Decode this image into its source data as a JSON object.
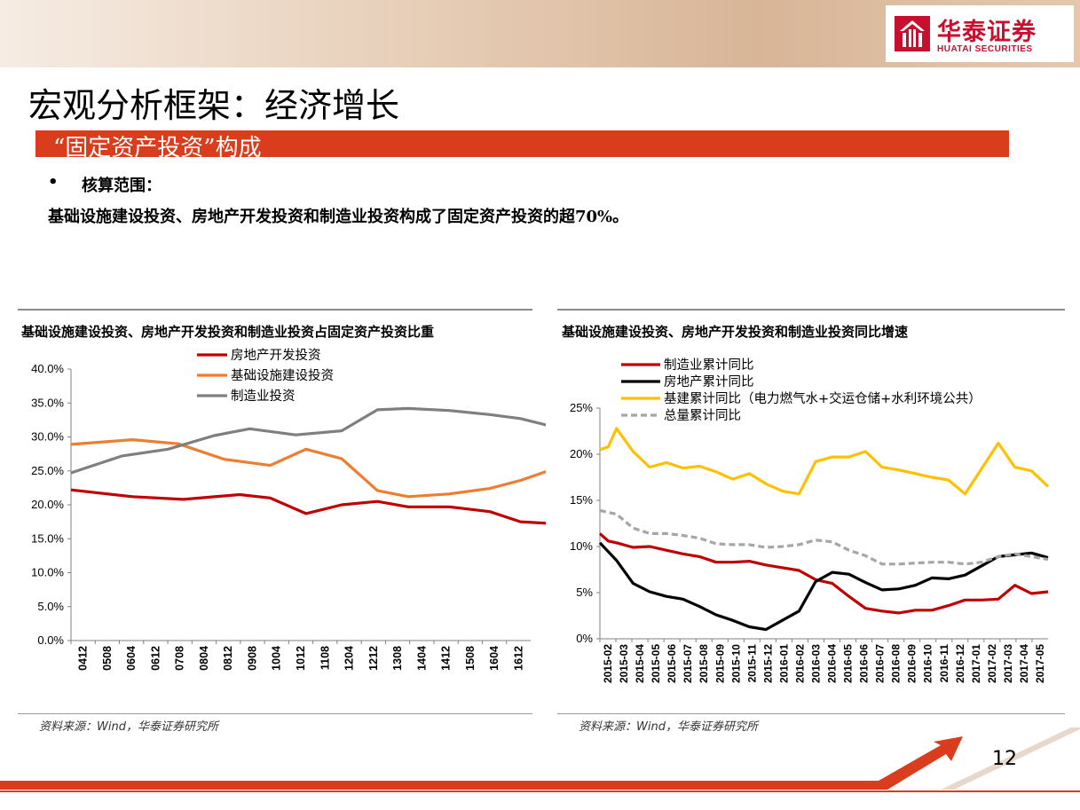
{
  "logo": {
    "cn": "华泰证券",
    "en": "HUATAI SECURITIES"
  },
  "title": "宏观分析框架：经济增长",
  "subtitle": "“固定资产投资”构成",
  "bullet": {
    "label": "核算范围："
  },
  "body_text": "基础设施建设投资、房地产开发投资和制造业投资构成了固定资产投资的超70%。",
  "page_number": "12",
  "colors": {
    "red": "#c00000",
    "orange": "#ed7d31",
    "gray": "#7f7f7f",
    "yellow": "#ffc000",
    "black": "#000000",
    "dash_gray": "#a6a6a6",
    "bar": "#d93d1e"
  },
  "chart_data": [
    {
      "type": "line",
      "title": "基础设施建设投资、房地产开发投资和制造业投资占固定资产投资比重",
      "source": "资料来源：Wind，华泰证券研究所",
      "categories": [
        "0412",
        "0508",
        "0604",
        "0612",
        "0708",
        "0804",
        "0812",
        "0908",
        "1004",
        "1012",
        "1108",
        "1204",
        "1212",
        "1308",
        "1404",
        "1412",
        "1508",
        "1604",
        "1612"
      ],
      "y_tick_labels": [
        "0.0%",
        "5.0%",
        "10.0%",
        "15.0%",
        "20.0%",
        "25.0%",
        "30.0%",
        "35.0%",
        "40.0%"
      ],
      "ylim": [
        0,
        40
      ],
      "legend_position": "top-center",
      "series": [
        {
          "name": "房地产开发投资",
          "color": "#c00000",
          "dash": false,
          "points": [
            [
              0,
              22.2
            ],
            [
              1.2,
              21.2
            ],
            [
              2.2,
              20.8
            ],
            [
              3.3,
              21.5
            ],
            [
              3.9,
              21.0
            ],
            [
              4.6,
              18.7
            ],
            [
              5.3,
              20.0
            ],
            [
              6,
              20.5
            ],
            [
              6.6,
              19.7
            ],
            [
              7.4,
              19.7
            ],
            [
              8.2,
              19.0
            ],
            [
              8.8,
              17.5
            ],
            [
              9.5,
              17.2
            ]
          ]
        },
        {
          "name": "基础设施建设投资",
          "color": "#ed7d31",
          "dash": false,
          "points": [
            [
              0,
              28.9
            ],
            [
              1.2,
              29.6
            ],
            [
              2.1,
              29.0
            ],
            [
              3.0,
              26.7
            ],
            [
              3.9,
              25.8
            ],
            [
              4.6,
              28.2
            ],
            [
              5.3,
              26.8
            ],
            [
              6,
              22.1
            ],
            [
              6.6,
              21.2
            ],
            [
              7.4,
              21.6
            ],
            [
              8.2,
              22.4
            ],
            [
              8.8,
              23.6
            ],
            [
              9.5,
              25.4
            ]
          ]
        },
        {
          "name": "制造业投资",
          "color": "#7f7f7f",
          "dash": false,
          "points": [
            [
              0,
              24.7
            ],
            [
              1,
              27.2
            ],
            [
              1.9,
              28.2
            ],
            [
              2.8,
              30.2
            ],
            [
              3.5,
              31.2
            ],
            [
              4.4,
              30.3
            ],
            [
              5.3,
              30.9
            ],
            [
              6,
              34.0
            ],
            [
              6.6,
              34.2
            ],
            [
              7.4,
              33.9
            ],
            [
              8.2,
              33.3
            ],
            [
              8.8,
              32.7
            ],
            [
              9.5,
              31.4
            ]
          ]
        }
      ]
    },
    {
      "type": "line",
      "title": "基础设施建设投资、房地产开发投资和制造业投资同比增速",
      "source": "资料来源：Wind，华泰证券研究所",
      "categories": [
        "2015-02",
        "2015-03",
        "2015-04",
        "2015-05",
        "2015-06",
        "2015-07",
        "2015-08",
        "2015-09",
        "2015-10",
        "2015-11",
        "2015-12",
        "2016-01",
        "2016-02",
        "2016-03",
        "2016-04",
        "2016-05",
        "2016-06",
        "2016-07",
        "2016-08",
        "2016-09",
        "2016-10",
        "2016-11",
        "2016-12",
        "2017-01",
        "2017-02",
        "2017-03",
        "2017-04",
        "2017-05"
      ],
      "y_tick_labels": [
        "0%",
        "5%",
        "10%",
        "15%",
        "20%",
        "25%"
      ],
      "ylim": [
        0,
        25
      ],
      "legend_position": "top-left",
      "series": [
        {
          "name": "制造业累计同比",
          "color": "#c00000",
          "dash": false,
          "points": [
            [
              0,
              11.4
            ],
            [
              0.5,
              10.6
            ],
            [
              1,
              10.4
            ],
            [
              2,
              9.9
            ],
            [
              3,
              10.0
            ],
            [
              4,
              9.6
            ],
            [
              5,
              9.2
            ],
            [
              6,
              8.9
            ],
            [
              7,
              8.3
            ],
            [
              8,
              8.3
            ],
            [
              9,
              8.4
            ],
            [
              10,
              8.0
            ],
            [
              11,
              7.7
            ],
            [
              12,
              7.4
            ],
            [
              13,
              6.4
            ],
            [
              14,
              6.0
            ],
            [
              15,
              4.6
            ],
            [
              16,
              3.3
            ],
            [
              17,
              3.0
            ],
            [
              18,
              2.8
            ],
            [
              19,
              3.1
            ],
            [
              20,
              3.1
            ],
            [
              21,
              3.6
            ],
            [
              22,
              4.2
            ],
            [
              23,
              4.2
            ],
            [
              24,
              4.3
            ],
            [
              25,
              5.8
            ],
            [
              26,
              4.9
            ],
            [
              27,
              5.1
            ]
          ]
        },
        {
          "name": "房地产累计同比",
          "color": "#000000",
          "dash": false,
          "points": [
            [
              0,
              10.4
            ],
            [
              1,
              8.5
            ],
            [
              2,
              6.0
            ],
            [
              3,
              5.1
            ],
            [
              4,
              4.6
            ],
            [
              5,
              4.3
            ],
            [
              6,
              3.5
            ],
            [
              7,
              2.6
            ],
            [
              8,
              2.0
            ],
            [
              9,
              1.3
            ],
            [
              10,
              1.0
            ],
            [
              11,
              2.0
            ],
            [
              12,
              3.0
            ],
            [
              13,
              6.2
            ],
            [
              14,
              7.2
            ],
            [
              15,
              7.0
            ],
            [
              16,
              6.1
            ],
            [
              17,
              5.3
            ],
            [
              18,
              5.4
            ],
            [
              19,
              5.8
            ],
            [
              20,
              6.6
            ],
            [
              21,
              6.5
            ],
            [
              22,
              6.9
            ],
            [
              23,
              7.9
            ],
            [
              24,
              8.9
            ],
            [
              25,
              9.1
            ],
            [
              26,
              9.3
            ],
            [
              27,
              8.8
            ]
          ]
        },
        {
          "name": "基建累计同比（电力燃气水+交运仓储+水利环境公共）",
          "color": "#ffc000",
          "dash": false,
          "points": [
            [
              0,
              20.5
            ],
            [
              0.5,
              20.8
            ],
            [
              1,
              22.8
            ],
            [
              2,
              20.3
            ],
            [
              3,
              18.6
            ],
            [
              4,
              19.1
            ],
            [
              5,
              18.5
            ],
            [
              6,
              18.7
            ],
            [
              7,
              18.1
            ],
            [
              8,
              17.3
            ],
            [
              9,
              17.9
            ],
            [
              10,
              16.8
            ],
            [
              11,
              16.0
            ],
            [
              12,
              15.7
            ],
            [
              13,
              19.2
            ],
            [
              14,
              19.7
            ],
            [
              15,
              19.7
            ],
            [
              16,
              20.3
            ],
            [
              17,
              18.6
            ],
            [
              18,
              18.3
            ],
            [
              19,
              17.9
            ],
            [
              20,
              17.5
            ],
            [
              21,
              17.2
            ],
            [
              22,
              15.7
            ],
            [
              24,
              21.2
            ],
            [
              25,
              18.6
            ],
            [
              26,
              18.2
            ],
            [
              27,
              16.5
            ]
          ]
        },
        {
          "name": "总量累计同比",
          "color": "#a6a6a6",
          "dash": true,
          "points": [
            [
              0,
              13.9
            ],
            [
              1,
              13.5
            ],
            [
              2,
              12.0
            ],
            [
              3,
              11.4
            ],
            [
              4,
              11.4
            ],
            [
              5,
              11.2
            ],
            [
              6,
              10.9
            ],
            [
              7,
              10.3
            ],
            [
              8,
              10.2
            ],
            [
              9,
              10.2
            ],
            [
              10,
              9.9
            ],
            [
              11,
              10.0
            ],
            [
              12,
              10.2
            ],
            [
              13,
              10.7
            ],
            [
              14,
              10.5
            ],
            [
              15,
              9.6
            ],
            [
              16,
              9.0
            ],
            [
              17,
              8.1
            ],
            [
              18,
              8.1
            ],
            [
              19,
              8.2
            ],
            [
              20,
              8.3
            ],
            [
              21,
              8.3
            ],
            [
              22,
              8.1
            ],
            [
              23,
              8.3
            ],
            [
              24,
              8.9
            ],
            [
              25,
              9.2
            ],
            [
              26,
              8.9
            ],
            [
              27,
              8.6
            ]
          ]
        }
      ]
    }
  ]
}
